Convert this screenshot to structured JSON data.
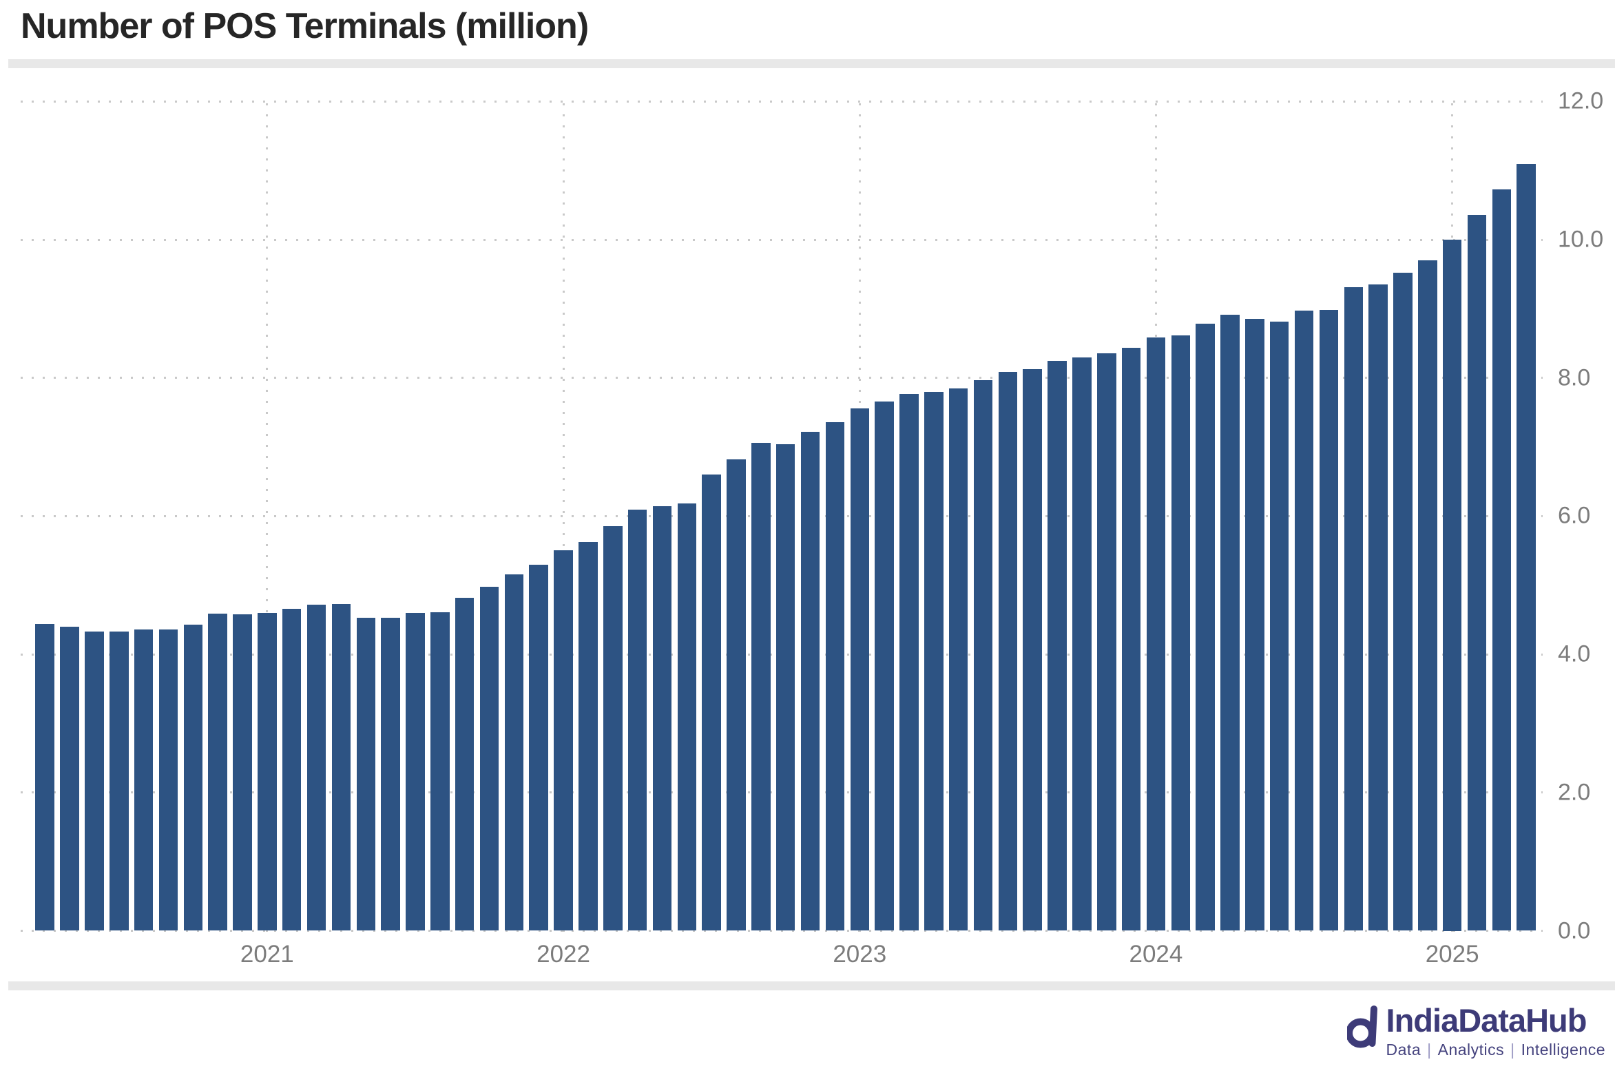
{
  "title": "Number of POS Terminals (million)",
  "colors": {
    "bar": "#2d5383",
    "grid_dots": "#c9c9c9",
    "axis_text": "#7c7c7c",
    "title_text": "#262626",
    "divider_band": "#e8e8e8",
    "brand": "#3d3b78"
  },
  "y_axis": {
    "ticks": [
      {
        "label": "12.0",
        "value": 12
      },
      {
        "label": "10.0",
        "value": 10
      },
      {
        "label": "8.0",
        "value": 8
      },
      {
        "label": "6.0",
        "value": 6
      },
      {
        "label": "4.0",
        "value": 4
      },
      {
        "label": "2.0",
        "value": 2
      },
      {
        "label": "0.0",
        "value": 0
      }
    ]
  },
  "x_axis": {
    "ticks": [
      {
        "label": "2021",
        "month": "2021-01"
      },
      {
        "label": "2022",
        "month": "2022-01"
      },
      {
        "label": "2023",
        "month": "2023-01"
      },
      {
        "label": "2024",
        "month": "2024-01"
      },
      {
        "label": "2025",
        "month": "2025-01"
      }
    ]
  },
  "branding": {
    "name": "IndiaDataHub",
    "tagline_parts": [
      "Data",
      "Analytics",
      "Intelligence"
    ],
    "separator": "|"
  },
  "chart_data": {
    "type": "bar",
    "title": "Number of POS Terminals (million)",
    "xlabel": "",
    "ylabel": "",
    "ylim": [
      0,
      12
    ],
    "yticks": [
      0,
      2,
      4,
      6,
      8,
      10,
      12
    ],
    "grid": "dotted",
    "legend": "none",
    "bar_color": "#2d5383",
    "x": [
      "2020-04",
      "2020-05",
      "2020-06",
      "2020-07",
      "2020-08",
      "2020-09",
      "2020-10",
      "2020-11",
      "2020-12",
      "2021-01",
      "2021-02",
      "2021-03",
      "2021-04",
      "2021-05",
      "2021-06",
      "2021-07",
      "2021-08",
      "2021-09",
      "2021-10",
      "2021-11",
      "2021-12",
      "2022-01",
      "2022-02",
      "2022-03",
      "2022-04",
      "2022-05",
      "2022-06",
      "2022-07",
      "2022-08",
      "2022-09",
      "2022-10",
      "2022-11",
      "2022-12",
      "2023-01",
      "2023-02",
      "2023-03",
      "2023-04",
      "2023-05",
      "2023-06",
      "2023-07",
      "2023-08",
      "2023-09",
      "2023-10",
      "2023-11",
      "2023-12",
      "2024-01",
      "2024-02",
      "2024-03",
      "2024-04",
      "2024-05",
      "2024-06",
      "2024-07",
      "2024-08",
      "2024-09",
      "2024-10",
      "2024-11",
      "2024-12",
      "2025-01",
      "2025-02",
      "2025-03",
      "2025-04"
    ],
    "values": [
      4.44,
      4.4,
      4.33,
      4.33,
      4.36,
      4.36,
      4.43,
      4.59,
      4.58,
      4.6,
      4.66,
      4.72,
      4.73,
      4.53,
      4.53,
      4.6,
      4.61,
      4.82,
      4.98,
      5.16,
      5.3,
      5.51,
      5.63,
      5.85,
      6.09,
      6.14,
      6.18,
      6.6,
      6.82,
      7.06,
      7.04,
      7.22,
      7.36,
      7.56,
      7.66,
      7.77,
      7.8,
      7.85,
      7.97,
      8.09,
      8.13,
      8.25,
      8.3,
      8.36,
      8.44,
      8.58,
      8.61,
      8.78,
      8.91,
      8.85,
      8.81,
      8.97,
      8.98,
      9.31,
      9.35,
      9.52,
      9.7,
      10.0,
      10.36,
      10.73,
      11.1
    ]
  }
}
